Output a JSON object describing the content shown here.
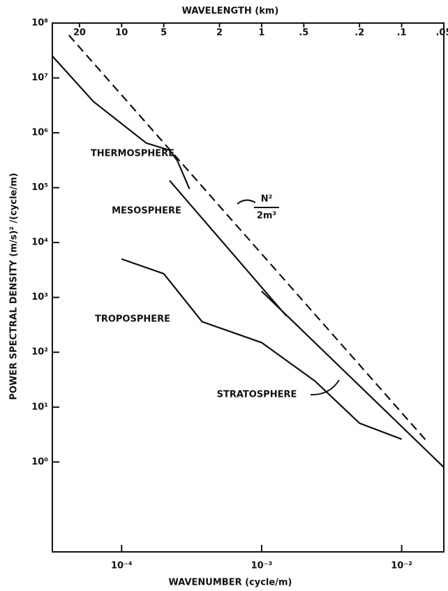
{
  "chart_data": {
    "type": "line",
    "title": "WAVELENGTH (km)",
    "xlabel": "WAVENUMBER (cycle/m)",
    "ylabel": "POWER SPECTRAL DENSITY (m/s)² /(cycle/m)",
    "xscale": "log",
    "yscale": "log",
    "xlim": [
      3.2e-05,
      0.02
    ],
    "xticks": [
      {
        "value": 0.0001,
        "label": "10⁻⁴"
      },
      {
        "value": 0.001,
        "label": "10⁻³"
      },
      {
        "value": 0.01,
        "label": "10⁻²"
      }
    ],
    "x2lim": [
      31.25,
      0.05
    ],
    "x2ticks": [
      20,
      10,
      5,
      2,
      1,
      {
        "value": 0.5,
        "label": ".5"
      },
      {
        "value": 0.2,
        "label": ".2"
      },
      {
        "value": 0.1,
        "label": ".1"
      },
      {
        "value": 0.05,
        "label": ".05"
      }
    ],
    "ylim": [
      0.023,
      100000000
    ],
    "yticks": [
      {
        "value": 1,
        "label": "10⁰"
      },
      {
        "value": 10,
        "label": "10¹"
      },
      {
        "value": 100,
        "label": "10²"
      },
      {
        "value": 1000,
        "label": "10³"
      },
      {
        "value": 10000,
        "label": "10⁴"
      },
      {
        "value": 100000,
        "label": "10⁵"
      },
      {
        "value": 1000000,
        "label": "10⁶"
      },
      {
        "value": 10000000,
        "label": "10⁷"
      },
      {
        "value": 100000000,
        "label": "10⁸"
      }
    ],
    "grid": false,
    "series": [
      {
        "name": "THERMOSPHERE",
        "color": "#111111",
        "linestyle": "solid",
        "x": [
          3.2e-05,
          6.3e-05,
          0.00015,
          0.00022,
          0.00025,
          0.000305
        ],
        "values": [
          25000000,
          3700000,
          650000,
          480000,
          310000,
          95000
        ]
      },
      {
        "name": "MESOSPHERE",
        "color": "#111111",
        "linestyle": "solid",
        "x": [
          0.00022,
          0.0015
        ],
        "values": [
          135000,
          460
        ]
      },
      {
        "name": "TROPOSPHERE",
        "color": "#111111",
        "linestyle": "solid",
        "x": [
          0.0001,
          0.0002,
          0.000376,
          0.001,
          0.0024,
          0.005,
          0.01
        ],
        "values": [
          5000,
          2700,
          360,
          150,
          30,
          5.1,
          2.6
        ]
      },
      {
        "name": "STRATOSPHERE",
        "color": "#111111",
        "linestyle": "solid",
        "x": [
          0.001,
          0.02
        ],
        "values": [
          1300,
          0.8
        ]
      },
      {
        "label": {
          "numerator": "N²",
          "denominator": "2m³"
        },
        "color": "#111111",
        "linestyle": "dashed",
        "x": [
          4.2e-05,
          0.0153
        ],
        "values": [
          60000000,
          2.3
        ]
      }
    ]
  }
}
